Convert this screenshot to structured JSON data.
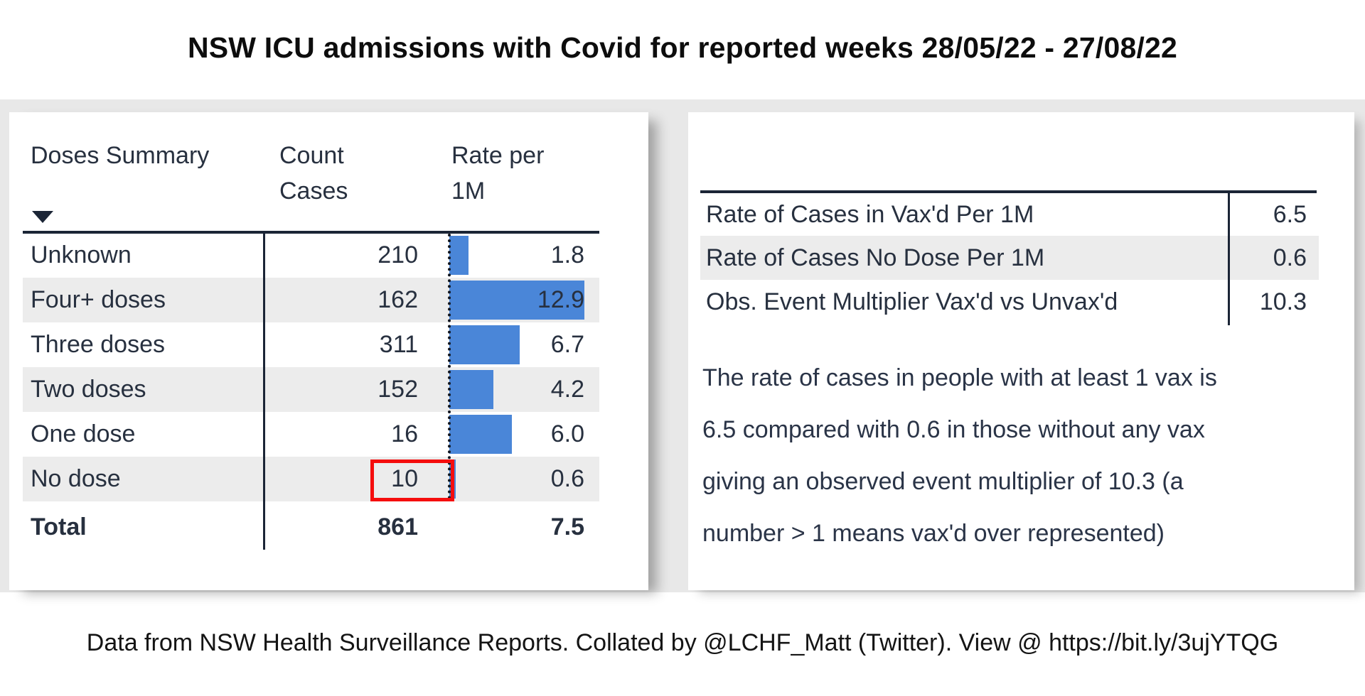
{
  "title": "NSW ICU admissions with Covid for reported weeks 28/05/22 - 27/08/22",
  "doses_table": {
    "headers": {
      "doses": "Doses Summary",
      "count": "Count Cases",
      "rate": "Rate per 1M"
    },
    "sort_icon": "sort-descending-triangle",
    "rows": [
      {
        "label": "Unknown",
        "count": "210",
        "rate": "1.8"
      },
      {
        "label": "Four+ doses",
        "count": "162",
        "rate": "12.9"
      },
      {
        "label": "Three doses",
        "count": "311",
        "rate": "6.7"
      },
      {
        "label": "Two doses",
        "count": "152",
        "rate": "4.2"
      },
      {
        "label": "One dose",
        "count": "16",
        "rate": "6.0"
      },
      {
        "label": "No dose",
        "count": "10",
        "rate": "0.6"
      }
    ],
    "total": {
      "label": "Total",
      "count": "861",
      "rate": "7.5"
    },
    "highlighted_cell": "No dose count"
  },
  "summary_table": {
    "rows": [
      {
        "label": "Rate of Cases in Vax'd Per 1M",
        "value": "6.5"
      },
      {
        "label": "Rate of Cases No Dose Per 1M",
        "value": "0.6"
      },
      {
        "label": "Obs. Event Multiplier Vax'd vs Unvax'd",
        "value": "10.3"
      }
    ]
  },
  "note_lines": [
    "The rate of cases in people with at least 1 vax is",
    "6.5 compared with 0.6 in those without any vax",
    "giving an observed event multiplier of 10.3 (a",
    "number > 1 means vax'd over represented)"
  ],
  "footer": "Data from NSW Health Surveillance Reports. Collated by @LCHF_Matt (Twitter). View @ https://bit.ly/3ujYTQG",
  "colors": {
    "bar_blue": "#4a86d8",
    "highlight_red": "#f50d0d",
    "rule_navy": "#1b2536",
    "zebra_gray": "#ececec",
    "band_gray": "#e8e8e8"
  },
  "chart_data": [
    {
      "type": "bar",
      "title": "NSW ICU admissions with Covid for reported weeks 28/05/22 - 27/08/22",
      "categories": [
        "Unknown",
        "Four+ doses",
        "Three doses",
        "Two doses",
        "One dose",
        "No dose"
      ],
      "series": [
        {
          "name": "Count Cases",
          "values": [
            210,
            162,
            311,
            152,
            16,
            10
          ]
        },
        {
          "name": "Rate per 1M",
          "values": [
            1.8,
            12.9,
            6.7,
            4.2,
            6.0,
            0.6
          ]
        }
      ],
      "totals": {
        "Count Cases": 861,
        "Rate per 1M": 7.5
      },
      "bar_axis_max": 12.9,
      "orientation": "horizontal",
      "notes": "Rate per 1M column rendered as data bars from a dotted zero baseline; No dose count (10) outlined in red"
    },
    {
      "type": "table",
      "categories": [
        "Rate of Cases in Vax'd Per 1M",
        "Rate of Cases No Dose Per 1M",
        "Obs. Event Multiplier Vax'd vs Unvax'd"
      ],
      "values": [
        6.5,
        0.6,
        10.3
      ]
    }
  ]
}
